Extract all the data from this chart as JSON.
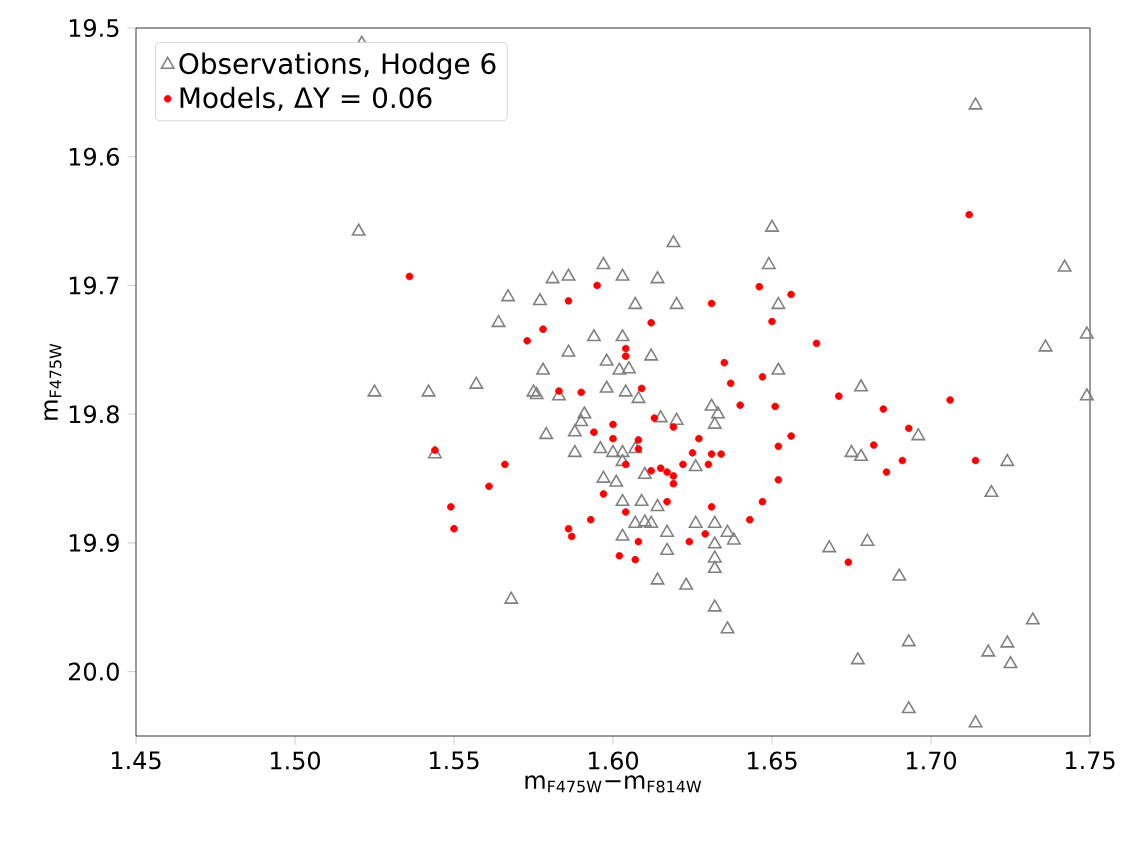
{
  "chart_data": {
    "type": "scatter",
    "xlabel": "m$_{F475W}$−m$_{F814W}$",
    "ylabel": "m$_{F475W}$",
    "xlim": [
      1.45,
      1.75
    ],
    "ylim": [
      20.05,
      19.5
    ],
    "xticks": [
      1.45,
      {
        "value": 1.5,
        "label": "1.50"
      },
      1.55,
      {
        "value": 1.6,
        "label": "1.60"
      },
      1.65,
      {
        "value": 1.7,
        "label": "1.70"
      },
      1.75
    ],
    "yticks": [
      19.5,
      19.6,
      19.7,
      19.8,
      19.9,
      {
        "value": 20.0,
        "label": "20.0"
      }
    ],
    "legend": "top left",
    "series": [
      {
        "name": "Observations, Hodge 6",
        "color": "#808080",
        "marker": "triangle",
        "x": [
          1.521,
          1.52,
          1.567,
          1.564,
          1.557,
          1.525,
          1.542,
          1.544,
          1.568,
          1.575,
          1.576,
          1.619,
          1.65,
          1.649,
          1.597,
          1.581,
          1.586,
          1.603,
          1.614,
          1.577,
          1.607,
          1.62,
          1.652,
          1.594,
          1.603,
          1.586,
          1.612,
          1.598,
          1.602,
          1.605,
          1.652,
          1.578,
          1.583,
          1.598,
          1.604,
          1.608,
          1.631,
          1.633,
          1.632,
          1.615,
          1.62,
          1.591,
          1.59,
          1.579,
          1.588,
          1.596,
          1.6,
          1.603,
          1.607,
          1.588,
          1.603,
          1.626,
          1.597,
          1.601,
          1.61,
          1.603,
          1.609,
          1.614,
          1.607,
          1.61,
          1.612,
          1.603,
          1.617,
          1.617,
          1.626,
          1.632,
          1.636,
          1.638,
          1.632,
          1.632,
          1.632,
          1.614,
          1.623,
          1.632,
          1.636,
          1.742,
          1.749,
          1.736,
          1.678,
          1.749,
          1.696,
          1.675,
          1.678,
          1.724,
          1.719,
          1.668,
          1.68,
          1.69,
          1.732,
          1.693,
          1.677,
          1.724,
          1.718,
          1.725,
          1.693,
          1.714,
          1.714
        ],
        "values": [
          19.512,
          19.658,
          19.709,
          19.729,
          19.777,
          19.783,
          19.783,
          19.831,
          19.944,
          19.783,
          19.785,
          19.667,
          19.655,
          19.684,
          19.684,
          19.695,
          19.693,
          19.693,
          19.695,
          19.712,
          19.715,
          19.715,
          19.715,
          19.74,
          19.74,
          19.752,
          19.755,
          19.759,
          19.766,
          19.765,
          19.766,
          19.766,
          19.786,
          19.78,
          19.783,
          19.788,
          19.794,
          19.8,
          19.808,
          19.803,
          19.805,
          19.8,
          19.806,
          19.816,
          19.814,
          19.827,
          19.83,
          19.83,
          19.827,
          19.83,
          19.837,
          19.841,
          19.85,
          19.853,
          19.847,
          19.868,
          19.868,
          19.872,
          19.885,
          19.884,
          19.885,
          19.895,
          19.892,
          19.906,
          19.885,
          19.885,
          19.892,
          19.898,
          19.901,
          19.912,
          19.92,
          19.929,
          19.933,
          19.95,
          19.967,
          19.686,
          19.738,
          19.748,
          19.779,
          19.786,
          19.817,
          19.83,
          19.833,
          19.837,
          19.861,
          19.904,
          19.899,
          19.926,
          19.96,
          19.977,
          19.991,
          19.978,
          19.985,
          19.994,
          20.029,
          20.04,
          19.56
        ]
      },
      {
        "name": "Models, ΔY = 0.06",
        "color": "#ff0000",
        "marker": "circle",
        "x": [
          1.536,
          1.573,
          1.544,
          1.566,
          1.561,
          1.549,
          1.55,
          1.595,
          1.586,
          1.631,
          1.646,
          1.656,
          1.65,
          1.612,
          1.578,
          1.604,
          1.604,
          1.635,
          1.664,
          1.637,
          1.647,
          1.64,
          1.651,
          1.583,
          1.59,
          1.609,
          1.656,
          1.652,
          1.627,
          1.613,
          1.619,
          1.6,
          1.594,
          1.6,
          1.608,
          1.608,
          1.625,
          1.631,
          1.634,
          1.622,
          1.63,
          1.604,
          1.612,
          1.615,
          1.617,
          1.619,
          1.619,
          1.652,
          1.597,
          1.617,
          1.604,
          1.631,
          1.647,
          1.643,
          1.593,
          1.586,
          1.587,
          1.608,
          1.624,
          1.629,
          1.602,
          1.607,
          1.671,
          1.685,
          1.706,
          1.693,
          1.682,
          1.691,
          1.686,
          1.714,
          1.674,
          1.712
        ],
        "values": [
          19.693,
          19.743,
          19.828,
          19.839,
          19.856,
          19.872,
          19.889,
          19.7,
          19.712,
          19.714,
          19.701,
          19.707,
          19.728,
          19.729,
          19.734,
          19.749,
          19.755,
          19.76,
          19.745,
          19.776,
          19.771,
          19.793,
          19.794,
          19.782,
          19.783,
          19.78,
          19.817,
          19.825,
          19.819,
          19.803,
          19.81,
          19.808,
          19.814,
          19.819,
          19.82,
          19.827,
          19.83,
          19.831,
          19.831,
          19.839,
          19.839,
          19.839,
          19.844,
          19.842,
          19.845,
          19.848,
          19.854,
          19.851,
          19.862,
          19.868,
          19.876,
          19.872,
          19.868,
          19.882,
          19.882,
          19.889,
          19.895,
          19.899,
          19.899,
          19.893,
          19.91,
          19.913,
          19.786,
          19.796,
          19.789,
          19.811,
          19.824,
          19.836,
          19.845,
          19.836,
          19.915,
          19.645
        ]
      }
    ]
  }
}
